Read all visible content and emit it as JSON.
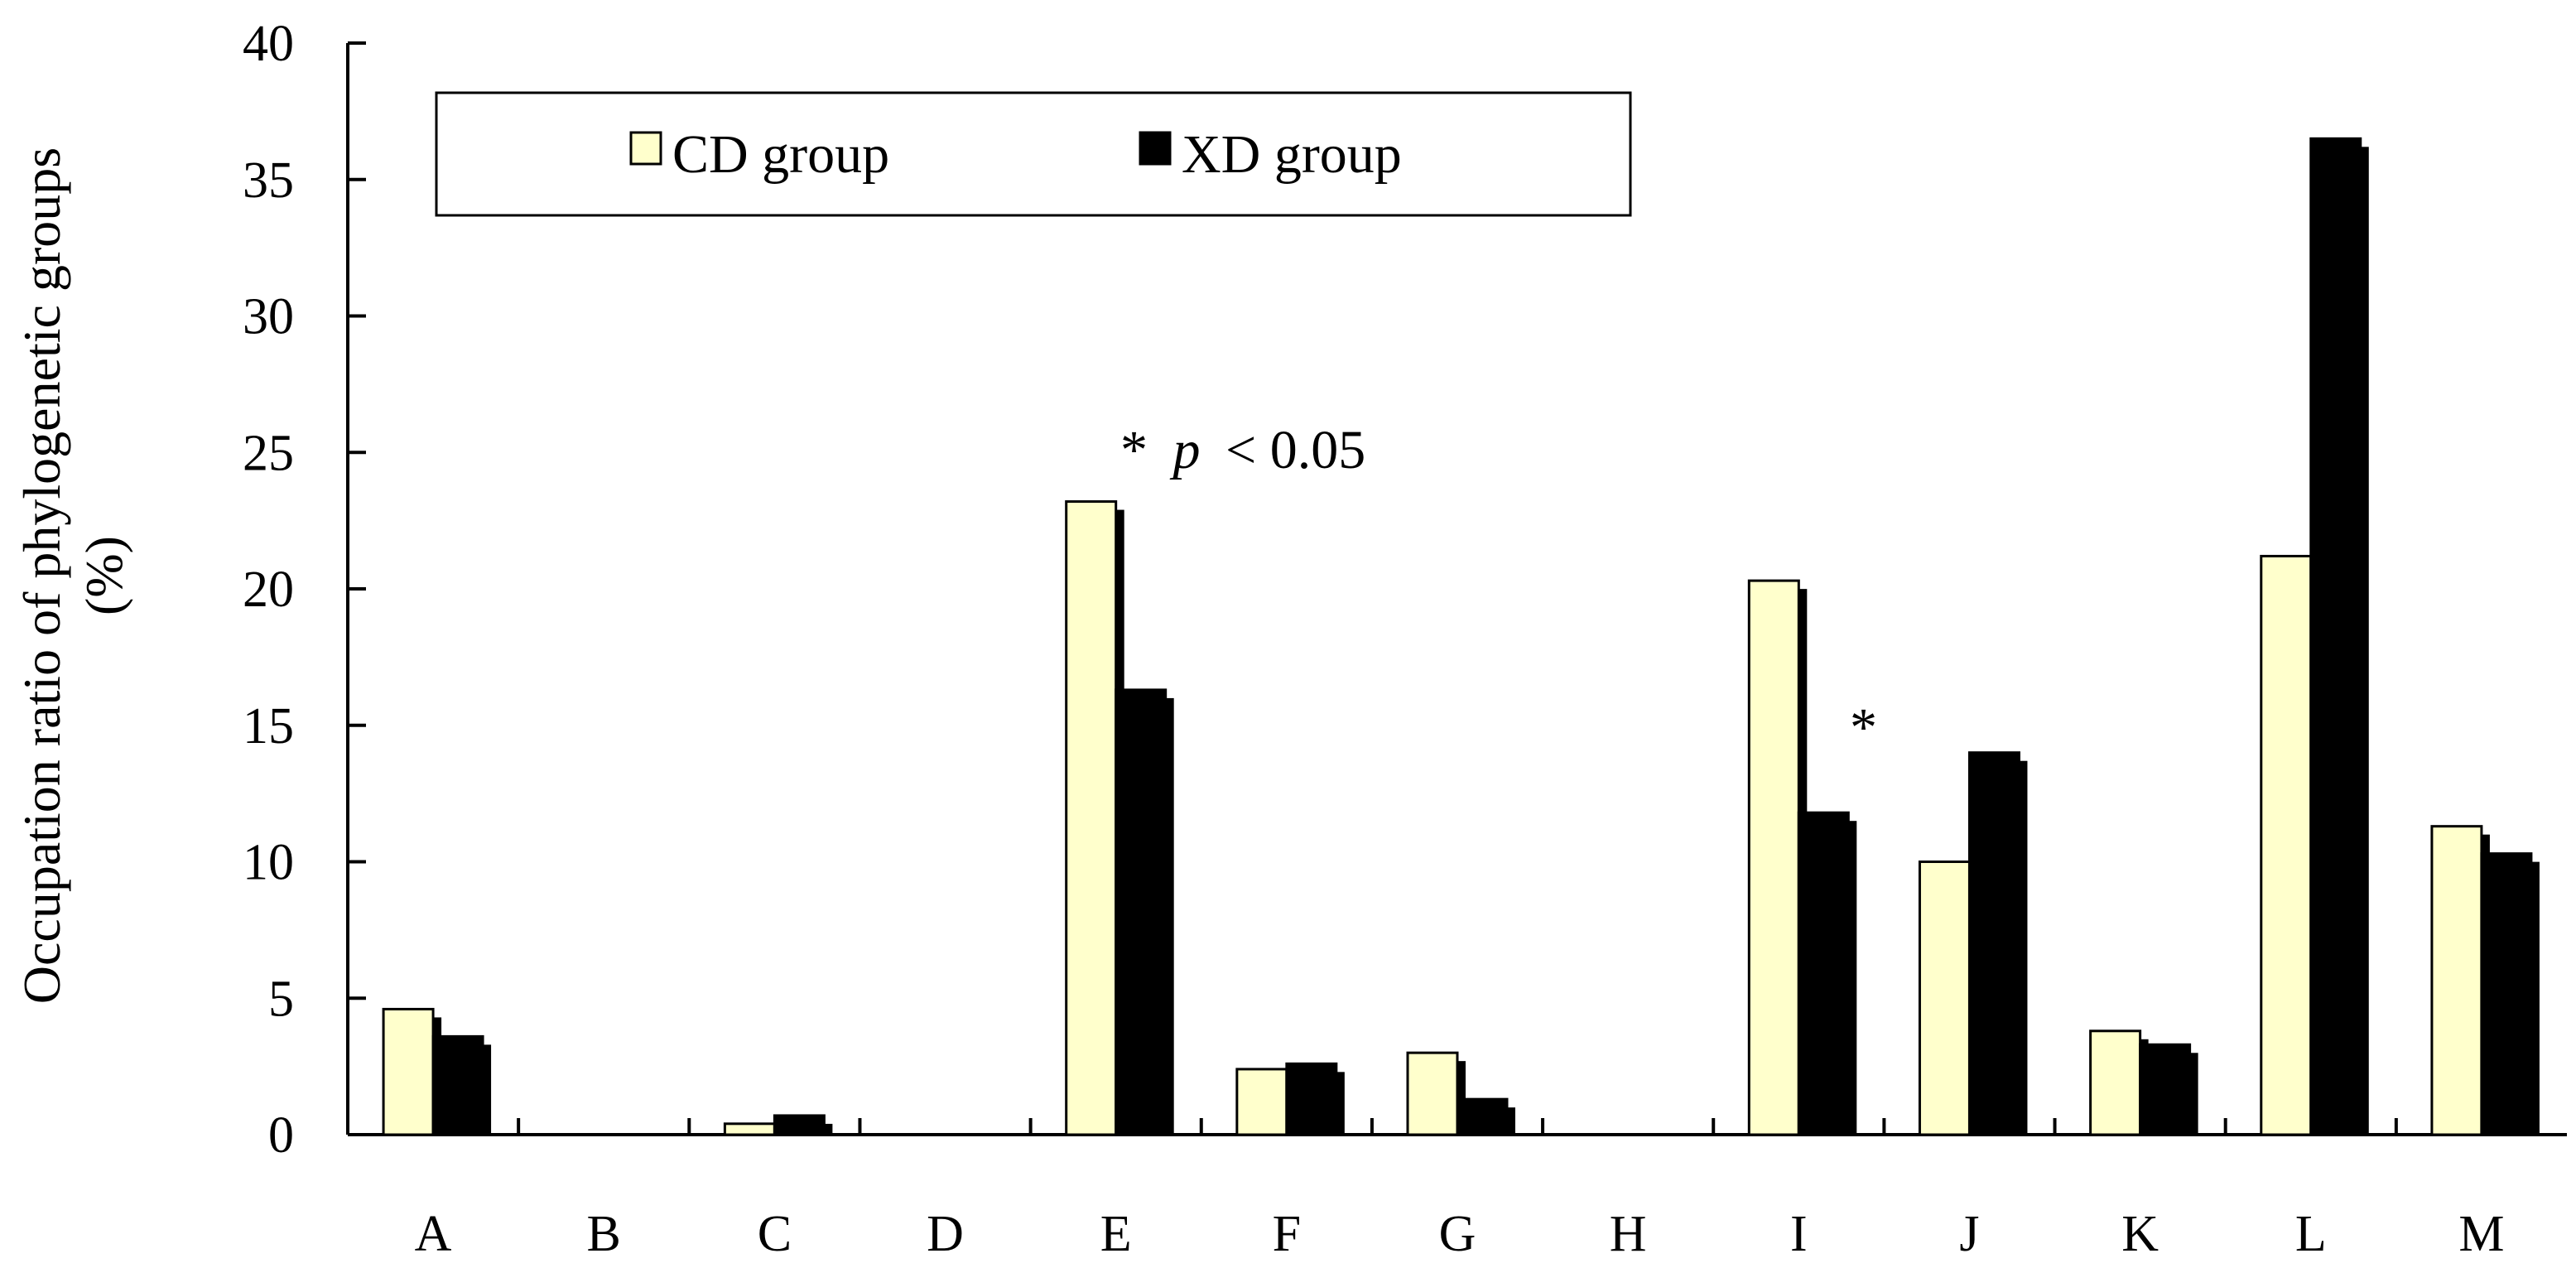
{
  "chart_data": {
    "type": "bar",
    "title": "",
    "xlabel": "",
    "ylabel": "Occupation ratio of phylogenetic groups",
    "ylabel_unit": "(%)",
    "ylim": [
      0,
      40
    ],
    "yticks": [
      0,
      5,
      10,
      15,
      20,
      25,
      30,
      35,
      40
    ],
    "grid": false,
    "legend_position": "top-left",
    "categories": [
      "A",
      "B",
      "C",
      "D",
      "E",
      "F",
      "G",
      "H",
      "I",
      "J",
      "K",
      "L",
      "M"
    ],
    "series": [
      {
        "name": "CD group",
        "color": "#FFFFCC",
        "values": [
          4.6,
          0,
          0.4,
          0,
          23.2,
          2.4,
          3.0,
          0,
          20.3,
          10.0,
          3.8,
          21.2,
          11.3
        ]
      },
      {
        "name": "XD group",
        "color": "#000000",
        "values": [
          3.6,
          0,
          0.7,
          0,
          16.3,
          2.6,
          1.3,
          0,
          11.8,
          14.0,
          3.3,
          36.5,
          10.3
        ]
      }
    ],
    "annotations": [
      {
        "category": "E",
        "text_star": "*",
        "text_p": "p",
        "text_rest": "< 0.05"
      },
      {
        "category": "I",
        "text_star": "*"
      }
    ]
  },
  "legend": {
    "cd_label": "CD group",
    "xd_label": "XD group"
  }
}
